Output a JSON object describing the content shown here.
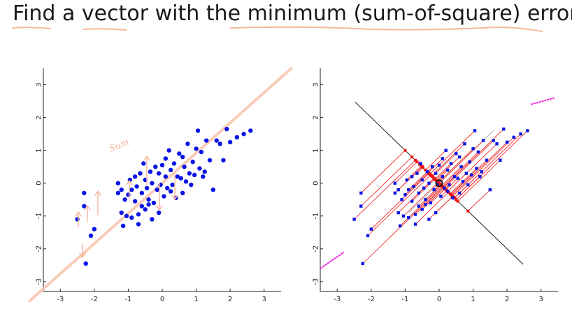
{
  "title": "Find a vector with the minimum (sum-of-square) error",
  "annotation_text": "Sum",
  "chart_data": [
    {
      "type": "scatter",
      "title": "",
      "xlabel": "",
      "ylabel": "",
      "xlim": [
        -3.5,
        3.5
      ],
      "ylim": [
        -3.3,
        3.5
      ],
      "xticks": [
        -3,
        -2,
        -1,
        0,
        1,
        2,
        3
      ],
      "yticks": [
        -3,
        -2,
        -1,
        0,
        1,
        2,
        3
      ],
      "grid": false,
      "point_color": "#0a14e6",
      "fit_line": {
        "slope": 0.92,
        "intercept": 0.0,
        "color": "#f7c4ab"
      },
      "points": [
        [
          -2.5,
          -1.1
        ],
        [
          -2.3,
          -0.3
        ],
        [
          -2.3,
          -0.7
        ],
        [
          -2.25,
          -2.45
        ],
        [
          -2.1,
          -1.6
        ],
        [
          -2.0,
          -1.4
        ],
        [
          -1.3,
          -0.3
        ],
        [
          -1.3,
          0.0
        ],
        [
          -1.2,
          -0.9
        ],
        [
          -1.15,
          -1.3
        ],
        [
          -1.1,
          -0.5
        ],
        [
          -1.05,
          -1.0
        ],
        [
          -1.0,
          -0.35
        ],
        [
          -0.95,
          0.1
        ],
        [
          -0.9,
          -0.2
        ],
        [
          -0.9,
          -1.05
        ],
        [
          -0.8,
          -0.55
        ],
        [
          -0.8,
          0.2
        ],
        [
          -0.75,
          -0.1
        ],
        [
          -0.7,
          -0.95
        ],
        [
          -0.7,
          -1.25
        ],
        [
          -0.65,
          0.3
        ],
        [
          -0.6,
          -0.3
        ],
        [
          -0.6,
          -0.7
        ],
        [
          -0.55,
          0.6
        ],
        [
          -0.5,
          0.1
        ],
        [
          -0.5,
          -0.8
        ],
        [
          -0.45,
          -0.15
        ],
        [
          -0.4,
          -0.5
        ],
        [
          -0.35,
          0.35
        ],
        [
          -0.3,
          -1.1
        ],
        [
          -0.3,
          0.0
        ],
        [
          -0.25,
          -0.6
        ],
        [
          -0.2,
          0.5
        ],
        [
          -0.15,
          -0.2
        ],
        [
          -0.1,
          -0.9
        ],
        [
          -0.1,
          0.3
        ],
        [
          -0.05,
          -0.05
        ],
        [
          0.0,
          0.55
        ],
        [
          0.05,
          -0.4
        ],
        [
          0.1,
          0.2
        ],
        [
          0.1,
          0.75
        ],
        [
          0.15,
          -0.15
        ],
        [
          0.2,
          1.0
        ],
        [
          0.25,
          0.4
        ],
        [
          0.3,
          -0.05
        ],
        [
          0.35,
          0.6
        ],
        [
          0.4,
          -0.45
        ],
        [
          0.45,
          0.2
        ],
        [
          0.5,
          0.9
        ],
        [
          0.55,
          0.15
        ],
        [
          0.6,
          -0.3
        ],
        [
          0.65,
          0.5
        ],
        [
          0.7,
          0.05
        ],
        [
          0.75,
          1.2
        ],
        [
          0.8,
          0.3
        ],
        [
          0.85,
          -0.05
        ],
        [
          0.9,
          0.65
        ],
        [
          0.95,
          0.25
        ],
        [
          1.0,
          1.05
        ],
        [
          1.05,
          1.6
        ],
        [
          1.1,
          0.45
        ],
        [
          1.15,
          0.95
        ],
        [
          1.2,
          0.2
        ],
        [
          1.3,
          1.3
        ],
        [
          1.4,
          0.7
        ],
        [
          1.5,
          -0.2
        ],
        [
          1.6,
          1.3
        ],
        [
          1.7,
          1.2
        ],
        [
          1.8,
          0.7
        ],
        [
          1.9,
          1.65
        ],
        [
          2.0,
          1.25
        ],
        [
          2.2,
          1.4
        ],
        [
          2.4,
          1.5
        ],
        [
          2.6,
          1.6
        ],
        [
          -0.4,
          -0.65
        ],
        [
          0.25,
          -0.25
        ],
        [
          0.6,
          0.8
        ],
        [
          -1.2,
          -0.2
        ],
        [
          1.25,
          0.35
        ]
      ]
    },
    {
      "type": "scatter",
      "title": "",
      "xlabel": "",
      "ylabel": "",
      "xlim": [
        -3.5,
        3.5
      ],
      "ylim": [
        -3.3,
        3.5
      ],
      "xticks": [
        -3,
        -2,
        -1,
        0,
        1,
        2,
        3
      ],
      "yticks": [
        -3,
        -2,
        -1,
        0,
        1,
        2,
        3
      ],
      "grid": false,
      "point_color": "#0a14e6",
      "projection_axis": {
        "direction": [
          0.707,
          -0.707
        ],
        "range": [
          -3.5,
          3.5
        ],
        "color": "#222222"
      },
      "projection_color": "#ee1111",
      "reference_line": {
        "color": "#aaaaaa"
      },
      "magenta_segments": [
        {
          "from": [
            2.7,
            2.4
          ],
          "to": [
            3.4,
            2.6
          ]
        },
        {
          "from": [
            -3.5,
            -2.6
          ],
          "to": [
            -2.8,
            -2.1
          ]
        }
      ],
      "magenta_color": "#ee22dd",
      "origin_marker": [
        0.0,
        0.0
      ],
      "points": [
        [
          -2.5,
          -1.1
        ],
        [
          -2.3,
          -0.3
        ],
        [
          -2.3,
          -0.7
        ],
        [
          -2.25,
          -2.45
        ],
        [
          -2.1,
          -1.6
        ],
        [
          -2.0,
          -1.4
        ],
        [
          -1.3,
          -0.3
        ],
        [
          -1.3,
          0.0
        ],
        [
          -1.2,
          -0.9
        ],
        [
          -1.15,
          -1.3
        ],
        [
          -1.1,
          -0.5
        ],
        [
          -1.05,
          -1.0
        ],
        [
          -1.0,
          -0.35
        ],
        [
          -0.95,
          0.1
        ],
        [
          -0.9,
          -0.2
        ],
        [
          -0.9,
          -1.05
        ],
        [
          -0.8,
          -0.55
        ],
        [
          -0.8,
          0.2
        ],
        [
          -0.75,
          -0.1
        ],
        [
          -0.7,
          -0.95
        ],
        [
          -0.7,
          -1.25
        ],
        [
          -0.65,
          0.3
        ],
        [
          -0.6,
          -0.3
        ],
        [
          -0.6,
          -0.7
        ],
        [
          -0.55,
          0.6
        ],
        [
          -0.5,
          0.1
        ],
        [
          -0.5,
          -0.8
        ],
        [
          -0.45,
          -0.15
        ],
        [
          -0.4,
          -0.5
        ],
        [
          -0.35,
          0.35
        ],
        [
          -0.3,
          -1.1
        ],
        [
          -0.3,
          0.0
        ],
        [
          -0.25,
          -0.6
        ],
        [
          -0.2,
          0.5
        ],
        [
          -0.15,
          -0.2
        ],
        [
          -0.1,
          -0.9
        ],
        [
          -0.1,
          0.3
        ],
        [
          -0.05,
          -0.05
        ],
        [
          0.0,
          0.55
        ],
        [
          0.05,
          -0.4
        ],
        [
          0.1,
          0.2
        ],
        [
          0.1,
          0.75
        ],
        [
          0.15,
          -0.15
        ],
        [
          0.2,
          1.0
        ],
        [
          0.25,
          0.4
        ],
        [
          0.3,
          -0.05
        ],
        [
          0.35,
          0.6
        ],
        [
          0.4,
          -0.45
        ],
        [
          0.45,
          0.2
        ],
        [
          0.5,
          0.9
        ],
        [
          0.55,
          0.15
        ],
        [
          0.6,
          -0.3
        ],
        [
          0.65,
          0.5
        ],
        [
          0.7,
          0.05
        ],
        [
          0.75,
          1.2
        ],
        [
          0.8,
          0.3
        ],
        [
          0.85,
          -0.05
        ],
        [
          0.9,
          0.65
        ],
        [
          0.95,
          0.25
        ],
        [
          1.0,
          1.05
        ],
        [
          1.05,
          1.6
        ],
        [
          1.1,
          0.45
        ],
        [
          1.15,
          0.95
        ],
        [
          1.2,
          0.2
        ],
        [
          1.3,
          1.3
        ],
        [
          1.4,
          0.7
        ],
        [
          1.5,
          -0.2
        ],
        [
          1.6,
          1.3
        ],
        [
          1.7,
          1.2
        ],
        [
          1.8,
          0.7
        ],
        [
          1.9,
          1.65
        ],
        [
          2.0,
          1.25
        ],
        [
          2.2,
          1.4
        ],
        [
          2.4,
          1.5
        ],
        [
          2.6,
          1.6
        ],
        [
          -0.4,
          -0.65
        ],
        [
          0.25,
          -0.25
        ],
        [
          0.6,
          0.8
        ],
        [
          -1.2,
          -0.2
        ],
        [
          1.25,
          0.35
        ]
      ]
    }
  ]
}
